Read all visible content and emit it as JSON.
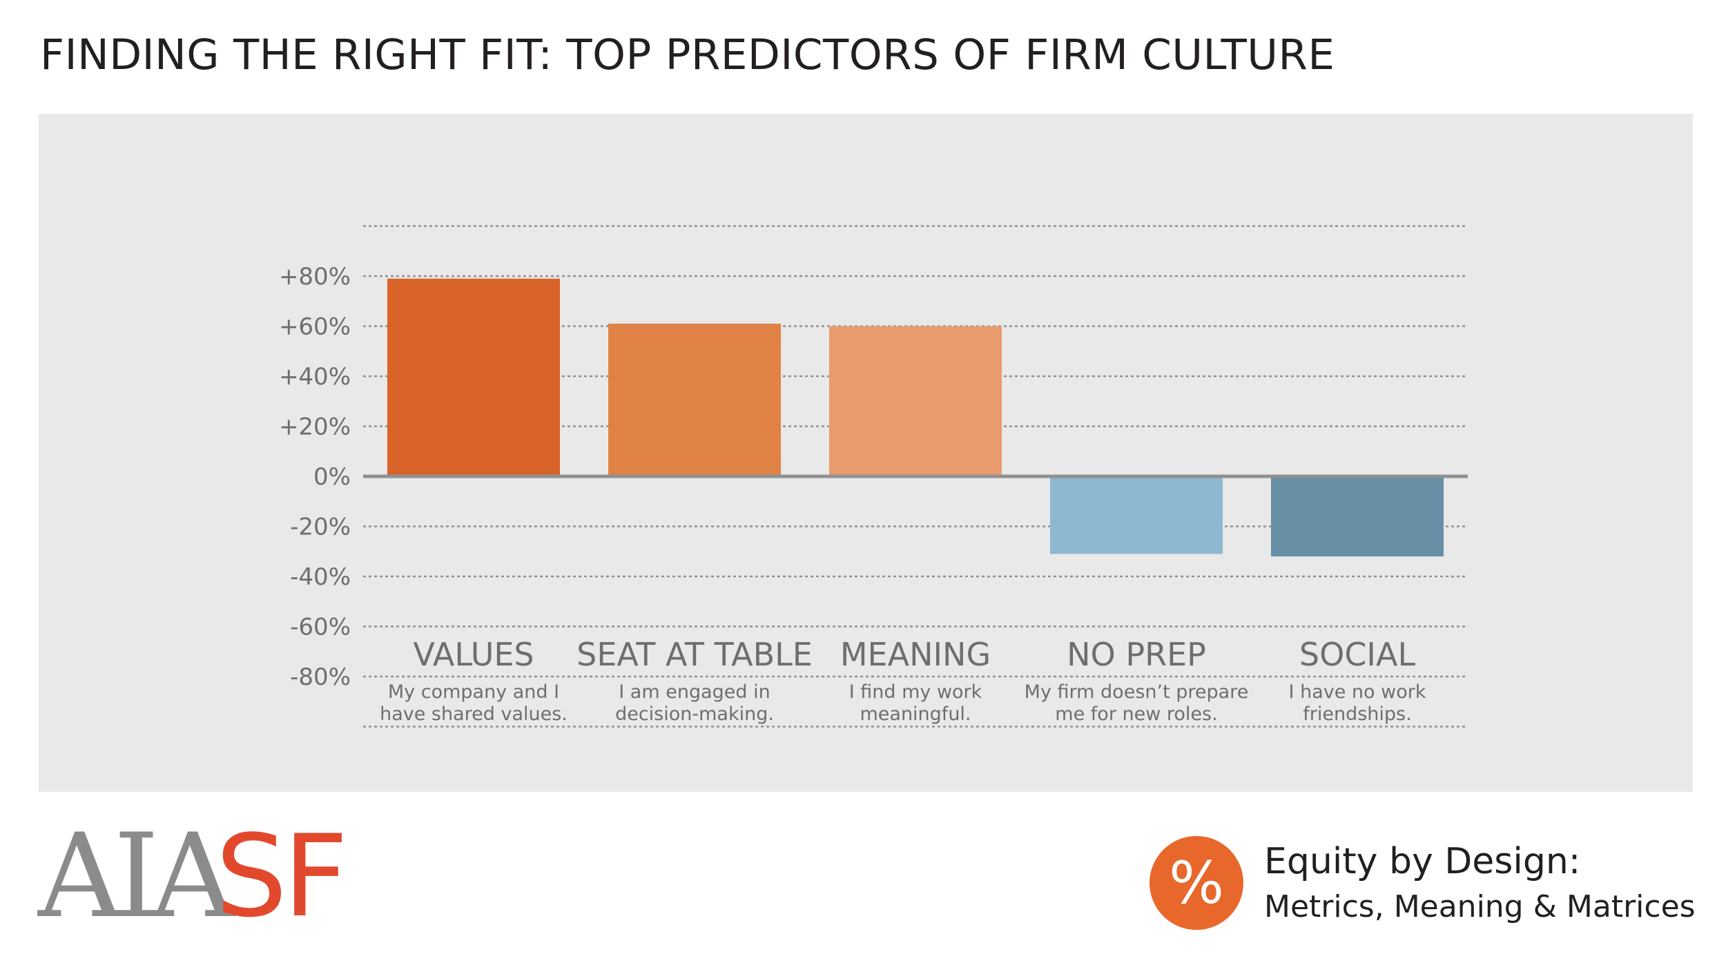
{
  "title": "FINDING THE RIGHT FIT: TOP PREDICTORS OF FIRM CULTURE",
  "chart_data": {
    "type": "bar",
    "title": "FINDING THE RIGHT FIT: TOP PREDICTORS OF FIRM CULTURE",
    "categories": [
      "VALUES",
      "SEAT AT TABLE",
      "MEANING",
      "NO PREP",
      "SOCIAL"
    ],
    "descriptions": [
      [
        "My company and I",
        "have shared values."
      ],
      [
        "I am engaged in",
        "decision-making."
      ],
      [
        "I find my work",
        "meaningful."
      ],
      [
        "My firm doesn’t prepare",
        "me for new roles."
      ],
      [
        "I have no work",
        "friendships."
      ]
    ],
    "values": [
      79,
      61,
      60,
      -31,
      -32
    ],
    "unit": "%",
    "ylim": [
      -80,
      80
    ],
    "yticks": [
      80,
      60,
      40,
      20,
      0,
      -20,
      -40,
      -60,
      -80
    ],
    "ytick_labels": [
      "+80%",
      "+60%",
      "+40%",
      "+20%",
      "0%",
      "-20%",
      "-40%",
      "-60%",
      "-80%"
    ],
    "colors": [
      "#d8642a",
      "#e08245",
      "#e89b6c",
      "#8db8cf",
      "#678fa6"
    ],
    "grid": true,
    "legend": "none"
  },
  "logo": {
    "part1": "AIA",
    "part2": "SF",
    "part1_color": "#8a8b8d",
    "part2_color": "#e2492c"
  },
  "badge": {
    "symbol": "%",
    "color": "#e8672b"
  },
  "footer": {
    "title": "Equity by Design:",
    "subtitle": "Metrics, Meaning & Matrices"
  }
}
